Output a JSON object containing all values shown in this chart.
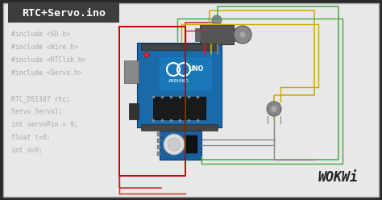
{
  "bg_outer": "#2a2a2a",
  "bg_inner": "#e8e8e8",
  "title_box_color": "#3d3d3d",
  "title_text": "RTC+Servo.ino",
  "title_text_color": "#ffffff",
  "title_fontsize": 9.5,
  "code_lines": [
    "#include <SD.h>",
    "#include <Wire.h>",
    "#include <RTClib.h>",
    "#include <Servo.h>",
    "",
    "RTC_DS1307 rtc;",
    "Servo Servo1;",
    "int servoPin = 9;",
    "float t=0;",
    "int d=0;"
  ],
  "code_color": "#aaaaaa",
  "code_fontsize": 5.8,
  "wokwi_text": "WOKWi",
  "wokwi_color": "#222222",
  "wokwi_fontsize": 12,
  "wire_red": "#cc2222",
  "wire_yellow": "#ccaa00",
  "wire_green": "#44aa44",
  "wire_gray": "#888888",
  "wire_orange": "#dd8800"
}
